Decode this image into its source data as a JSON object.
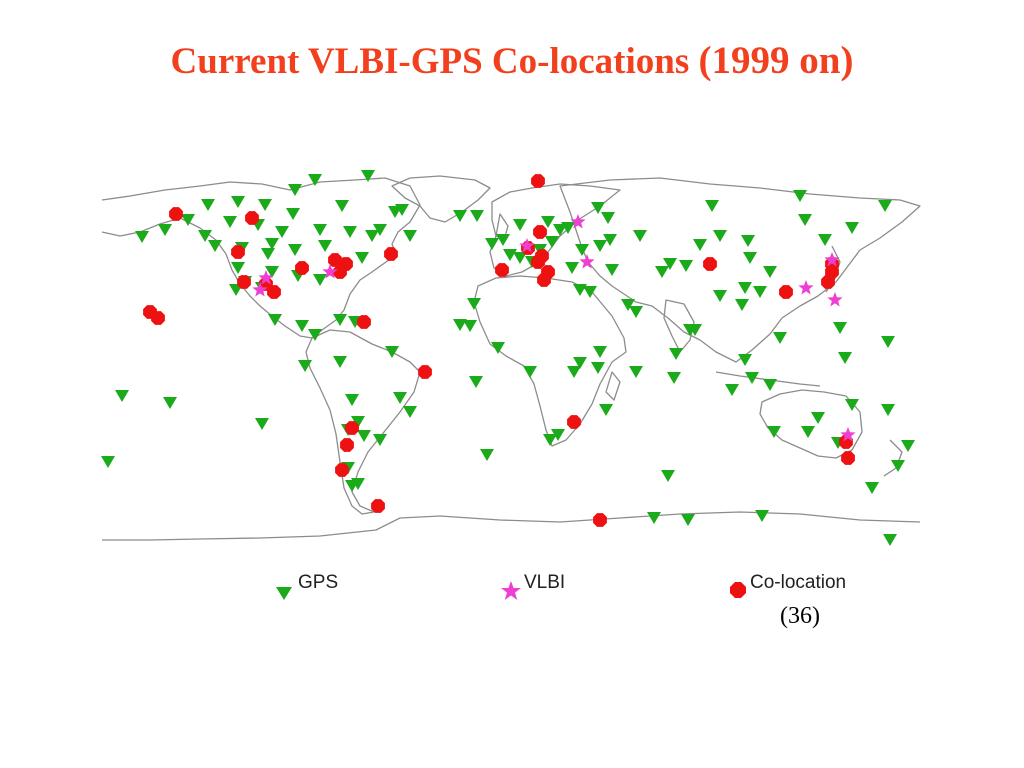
{
  "slide": {
    "title_main": "Current VLBI-GPS Co-locations ",
    "title_years": "(1999 on)",
    "colocation_count": "(36)"
  },
  "legend": {
    "gps": "GPS",
    "vlbi": "VLBI",
    "colocation": "Co-location"
  },
  "colors": {
    "title": "#f2401e",
    "gps": "#1aaa1a",
    "vlbi": "#ee3fd2",
    "colocation": "#ee1111",
    "coastline": "#8c8c8c"
  },
  "icons": {
    "gps": "green-down-triangle-icon",
    "vlbi": "magenta-star-icon",
    "colocation": "red-octagon-icon"
  }
}
